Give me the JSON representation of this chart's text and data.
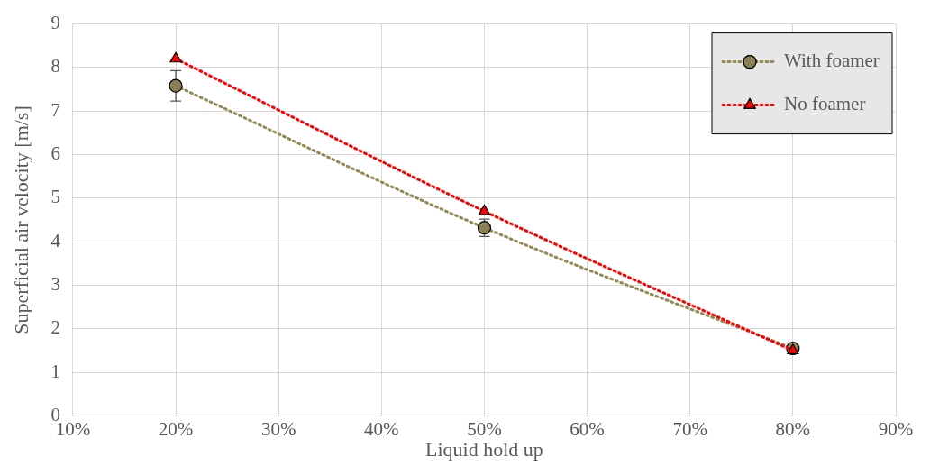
{
  "chart_data": {
    "type": "line",
    "xlabel": "Liquid hold up",
    "ylabel": "Superficial air velocity [m/s]",
    "xlim": [
      10,
      90
    ],
    "xticks": [
      {
        "value": 10,
        "label": "10%"
      },
      {
        "value": 20,
        "label": "20%"
      },
      {
        "value": 30,
        "label": "30%"
      },
      {
        "value": 40,
        "label": "40%"
      },
      {
        "value": 50,
        "label": "50%"
      },
      {
        "value": 60,
        "label": "60%"
      },
      {
        "value": 70,
        "label": "70%"
      },
      {
        "value": 80,
        "label": "80%"
      },
      {
        "value": 90,
        "label": "90%"
      }
    ],
    "ylim": [
      0,
      9
    ],
    "yticks": [
      0,
      1,
      2,
      3,
      4,
      5,
      6,
      7,
      8,
      9
    ],
    "grid": true,
    "legend": "top right",
    "line_style": "dotted",
    "series": [
      {
        "name": "With foamer",
        "color": "#958a55",
        "marker": "circle",
        "x": [
          20,
          50,
          80
        ],
        "values": [
          7.58,
          4.32,
          1.55
        ],
        "errors": [
          0.35,
          0.2,
          null
        ]
      },
      {
        "name": "No foamer",
        "color": "#ff0000",
        "marker": "triangle",
        "x": [
          20,
          50,
          80
        ],
        "values": [
          8.2,
          4.7,
          1.5
        ]
      }
    ]
  }
}
